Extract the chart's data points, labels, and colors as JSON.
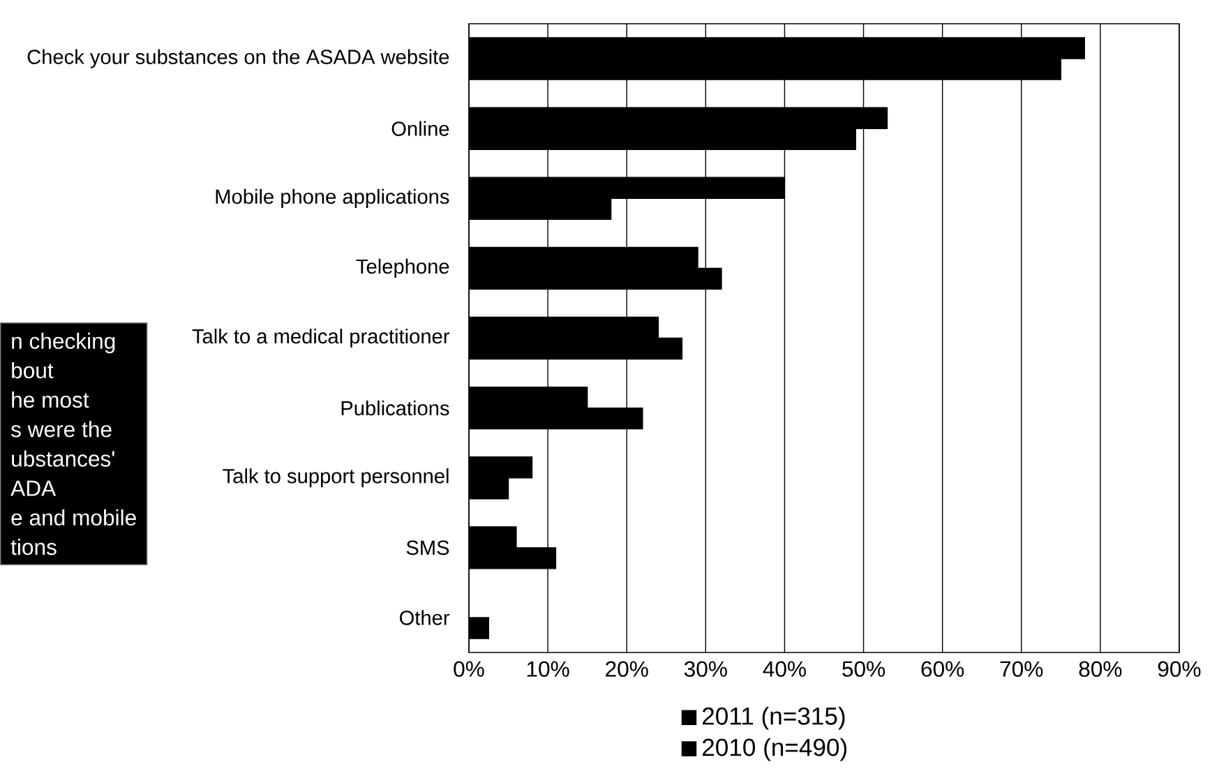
{
  "chart_data": {
    "type": "bar",
    "orientation": "horizontal",
    "categories": [
      "Check your substances on the ASADA website",
      "Online",
      "Mobile phone applications",
      "Telephone",
      "Talk to a medical practitioner",
      "Publications",
      "Talk to support personnel",
      "SMS",
      "Other"
    ],
    "series": [
      {
        "name": "2011 (n=315)",
        "color": "#000000",
        "values": [
          78,
          53,
          40,
          29,
          24,
          15,
          8,
          6,
          null
        ]
      },
      {
        "name": "2010 (n=490)",
        "color": "#000000",
        "values": [
          75,
          49,
          18,
          32,
          27,
          22,
          5,
          11,
          2.5
        ]
      }
    ],
    "xlim": [
      0,
      90
    ],
    "xticks": [
      {
        "value": 0,
        "label": "0%"
      },
      {
        "value": 10,
        "label": "10%"
      },
      {
        "value": 20,
        "label": "20%"
      },
      {
        "value": 30,
        "label": "30%"
      },
      {
        "value": 40,
        "label": "40%"
      },
      {
        "value": 50,
        "label": "50%"
      },
      {
        "value": 60,
        "label": "60%"
      },
      {
        "value": 70,
        "label": "70%"
      },
      {
        "value": 80,
        "label": "80%"
      },
      {
        "value": 90,
        "label": "90%"
      }
    ],
    "grid": "x",
    "legend": "bottom",
    "annotations": [
      "n checking",
      "bout",
      "he most",
      "s were the",
      "ubstances'",
      "ADA",
      "e and mobile",
      "tions"
    ]
  }
}
